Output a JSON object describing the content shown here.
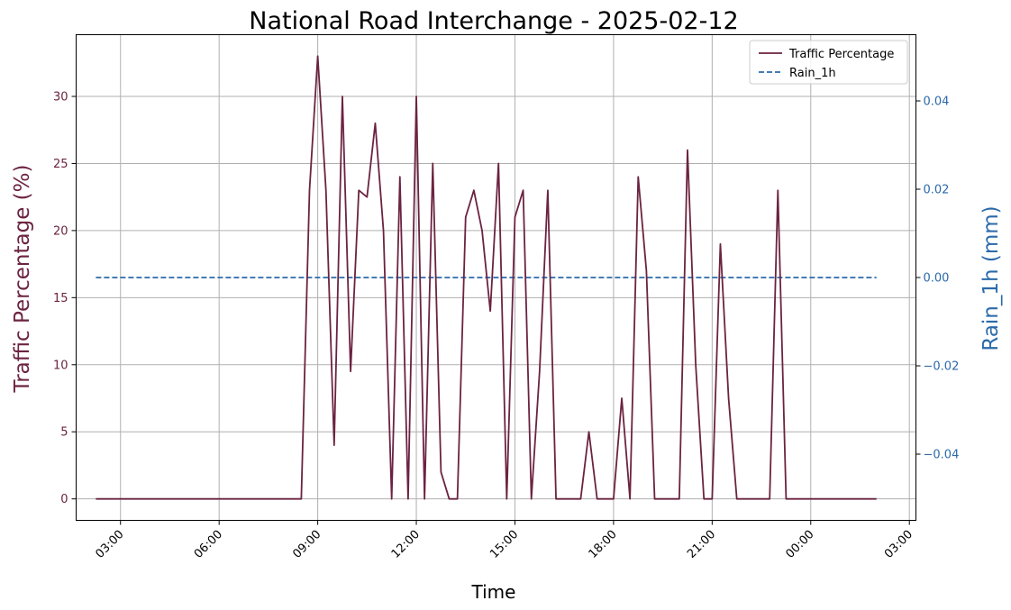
{
  "chart_data": {
    "type": "line",
    "title": "National Road Interchange - 2025-02-12",
    "xlabel": "Time",
    "ylabel_left": "Traffic Percentage (%)",
    "ylabel_right": "Rain_1h (mm)",
    "x_ticks": [
      "03:00",
      "06:00",
      "09:00",
      "12:00",
      "15:00",
      "18:00",
      "21:00",
      "00:00",
      "03:00"
    ],
    "x_tick_hours": [
      3,
      6,
      9,
      12,
      15,
      18,
      21,
      24,
      27
    ],
    "xlim_hours": [
      1.65,
      27.2
    ],
    "y_left_ticks": [
      "0",
      "5",
      "10",
      "15",
      "20",
      "25",
      "30"
    ],
    "y_left_tick_values": [
      0,
      5,
      10,
      15,
      20,
      25,
      30
    ],
    "ylim_left": [
      -1.6,
      34.6
    ],
    "y_right_ticks": [
      "−0.04",
      "−0.02",
      "0.00",
      "0.02",
      "0.04"
    ],
    "y_right_tick_values": [
      -0.04,
      -0.02,
      0.0,
      0.02,
      0.04
    ],
    "ylim_right": [
      -0.055,
      0.055
    ],
    "grid": true,
    "legend_position": "top-right",
    "colors": {
      "traffic": "#6b2340",
      "rain": "#2b6aaa",
      "left_axis": "#6b2340",
      "right_axis": "#2b6aaa"
    },
    "series": [
      {
        "name": "Traffic Percentage",
        "axis": "left",
        "style": "solid",
        "x": [
          2.25,
          8.5,
          8.75,
          9.0,
          9.25,
          9.5,
          9.75,
          10.0,
          10.25,
          10.5,
          10.75,
          11.0,
          11.25,
          11.5,
          11.75,
          12.0,
          12.25,
          12.5,
          12.75,
          13.0,
          13.25,
          13.5,
          13.75,
          14.0,
          14.25,
          14.5,
          14.75,
          15.0,
          15.25,
          15.5,
          15.75,
          16.0,
          16.25,
          16.5,
          16.75,
          17.0,
          17.25,
          17.5,
          17.75,
          18.0,
          18.25,
          18.5,
          18.75,
          19.0,
          19.25,
          19.5,
          19.75,
          20.0,
          20.25,
          20.5,
          20.75,
          21.0,
          21.25,
          21.5,
          21.75,
          22.0,
          22.25,
          22.5,
          22.75,
          23.0,
          23.25,
          23.5,
          23.75,
          24.0,
          26.0
        ],
        "y": [
          0,
          0,
          23,
          33,
          23,
          4,
          30,
          9.5,
          23,
          22.5,
          28,
          20,
          0,
          24,
          0,
          30,
          0,
          25,
          2,
          0,
          0,
          21,
          23,
          20,
          14,
          25,
          0,
          21,
          23,
          0,
          9.5,
          23,
          0,
          0,
          0,
          0,
          5,
          0,
          0,
          0,
          7.5,
          0,
          24,
          17,
          0,
          0,
          0,
          0,
          26,
          10,
          0,
          0,
          19,
          7.5,
          0,
          0,
          0,
          0,
          0,
          23,
          0,
          0,
          0,
          0,
          0
        ]
      },
      {
        "name": "Rain_1h",
        "axis": "right",
        "style": "dashed",
        "x": [
          2.25,
          26.0
        ],
        "y": [
          0.0,
          0.0
        ]
      }
    ]
  }
}
